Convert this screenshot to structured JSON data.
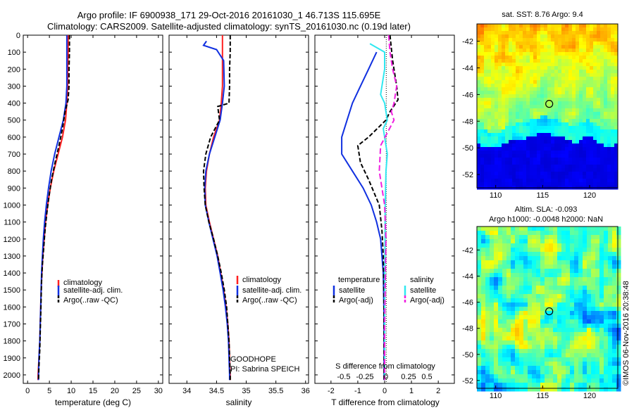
{
  "header": {
    "title_line1": "Argo profile: IF 6900938_171 29-Oct-2016 20161030_1 46.713S 115.695E",
    "title_line2": "Climatology: CARS2009. Satellite-adjusted climatology: synTS_20161030.nc (0.19d later)"
  },
  "watermark": "©IMOS 06-Nov-2016 20:38:48",
  "colors": {
    "climatology": "#ff2020",
    "satellite": "#1030e0",
    "argo": "#000000",
    "satellite_salinity": "#30e8f0",
    "argo_salinity": "#f020e0",
    "map_deep": "#001a8c"
  },
  "chart_data": [
    {
      "type": "line",
      "id": "temperature",
      "xlabel": "temperature (deg C)",
      "ylim": [
        2050,
        0
      ],
      "xlim": [
        -1,
        31
      ],
      "yticks": [
        0,
        100,
        200,
        300,
        400,
        500,
        600,
        700,
        800,
        900,
        1000,
        1100,
        1200,
        1300,
        1400,
        1500,
        1600,
        1700,
        1800,
        1900,
        2000
      ],
      "xticks": [
        0,
        5,
        10,
        15,
        20,
        25,
        30
      ],
      "legend": [
        "climatology",
        "satellite-adj. clim.",
        "Argo(..raw -QC)"
      ],
      "series": [
        {
          "name": "climatology",
          "color": "#ff2020",
          "dash": "",
          "points": [
            [
              9.3,
              0
            ],
            [
              9.3,
              100
            ],
            [
              9.2,
              200
            ],
            [
              9.2,
              300
            ],
            [
              9.0,
              400
            ],
            [
              8.7,
              500
            ],
            [
              8.0,
              600
            ],
            [
              7.0,
              700
            ],
            [
              6.0,
              800
            ],
            [
              5.2,
              900
            ],
            [
              4.6,
              1000
            ],
            [
              4.1,
              1100
            ],
            [
              3.8,
              1200
            ],
            [
              3.5,
              1300
            ],
            [
              3.3,
              1400
            ],
            [
              3.1,
              1500
            ],
            [
              3.0,
              1600
            ],
            [
              2.9,
              1700
            ],
            [
              2.8,
              1800
            ],
            [
              2.6,
              1900
            ],
            [
              2.4,
              2000
            ],
            [
              2.4,
              2030
            ]
          ]
        },
        {
          "name": "satellite-adj. clim.",
          "color": "#1030e0",
          "dash": "",
          "points": [
            [
              9.0,
              0
            ],
            [
              9.0,
              100
            ],
            [
              9.0,
              200
            ],
            [
              9.0,
              300
            ],
            [
              8.8,
              400
            ],
            [
              8.2,
              500
            ],
            [
              7.2,
              600
            ],
            [
              6.2,
              700
            ],
            [
              5.4,
              800
            ],
            [
              4.8,
              900
            ],
            [
              4.3,
              1000
            ],
            [
              3.9,
              1100
            ],
            [
              3.6,
              1200
            ],
            [
              3.4,
              1300
            ],
            [
              3.2,
              1400
            ],
            [
              3.1,
              1500
            ],
            [
              3.0,
              1600
            ],
            [
              2.9,
              1700
            ],
            [
              2.8,
              1800
            ],
            [
              2.6,
              1900
            ],
            [
              2.5,
              2000
            ],
            [
              2.5,
              2030
            ]
          ]
        },
        {
          "name": "Argo(..raw -QC)",
          "color": "#000000",
          "dash": "6,3",
          "points": [
            [
              9.6,
              0
            ],
            [
              9.6,
              100
            ],
            [
              9.5,
              200
            ],
            [
              9.5,
              300
            ],
            [
              9.3,
              380
            ],
            [
              8.6,
              450
            ],
            [
              8.0,
              550
            ],
            [
              7.2,
              650
            ],
            [
              6.3,
              750
            ],
            [
              5.5,
              850
            ],
            [
              4.9,
              950
            ],
            [
              4.4,
              1050
            ],
            [
              4.0,
              1150
            ],
            [
              3.7,
              1250
            ],
            [
              3.4,
              1350
            ],
            [
              3.2,
              1450
            ],
            [
              3.1,
              1550
            ],
            [
              3.0,
              1650
            ],
            [
              2.9,
              1750
            ],
            [
              2.8,
              1850
            ],
            [
              2.6,
              1950
            ],
            [
              2.5,
              2030
            ]
          ]
        }
      ]
    },
    {
      "type": "line",
      "id": "salinity",
      "xlabel": "salinity",
      "ylim": [
        2050,
        0
      ],
      "xlim": [
        33.7,
        36.05
      ],
      "xticks": [
        34,
        34.5,
        35,
        35.5,
        36
      ],
      "legend": [
        "climatology",
        "satellite-adj. clim.",
        "Argo(..raw -QC)"
      ],
      "annotations": [
        "GOODHOPE",
        "PI: Sabrina SPEICH"
      ],
      "series": [
        {
          "name": "climatology",
          "color": "#ff2020",
          "dash": "",
          "points": [
            [
              34.6,
              0
            ],
            [
              34.6,
              100
            ],
            [
              34.6,
              200
            ],
            [
              34.6,
              300
            ],
            [
              34.58,
              400
            ],
            [
              34.55,
              500
            ],
            [
              34.45,
              600
            ],
            [
              34.38,
              700
            ],
            [
              34.33,
              800
            ],
            [
              34.31,
              900
            ],
            [
              34.32,
              1000
            ],
            [
              34.38,
              1100
            ],
            [
              34.45,
              1200
            ],
            [
              34.52,
              1300
            ],
            [
              34.57,
              1400
            ],
            [
              34.62,
              1500
            ],
            [
              34.66,
              1600
            ],
            [
              34.69,
              1700
            ],
            [
              34.71,
              1800
            ],
            [
              34.72,
              1900
            ],
            [
              34.73,
              2000
            ],
            [
              34.73,
              2030
            ]
          ]
        },
        {
          "name": "satellite-adj. clim.",
          "color": "#1030e0",
          "dash": "",
          "points": [
            [
              34.33,
              35
            ],
            [
              34.28,
              60
            ],
            [
              34.5,
              85
            ],
            [
              34.62,
              150
            ],
            [
              34.63,
              300
            ],
            [
              34.6,
              400
            ],
            [
              34.56,
              500
            ],
            [
              34.47,
              600
            ],
            [
              34.38,
              700
            ],
            [
              34.32,
              800
            ],
            [
              34.3,
              900
            ],
            [
              34.31,
              1000
            ],
            [
              34.37,
              1100
            ],
            [
              34.44,
              1200
            ],
            [
              34.51,
              1300
            ],
            [
              34.56,
              1400
            ],
            [
              34.61,
              1500
            ],
            [
              34.65,
              1600
            ],
            [
              34.68,
              1700
            ],
            [
              34.7,
              1800
            ],
            [
              34.71,
              1900
            ],
            [
              34.72,
              2000
            ],
            [
              34.72,
              2030
            ]
          ]
        },
        {
          "name": "Argo(..raw -QC)",
          "color": "#000000",
          "dash": "6,3",
          "points": [
            [
              34.73,
              0
            ],
            [
              34.73,
              100
            ],
            [
              34.72,
              200
            ],
            [
              34.72,
              300
            ],
            [
              34.71,
              400
            ],
            [
              34.52,
              420
            ],
            [
              34.55,
              500
            ],
            [
              34.4,
              600
            ],
            [
              34.32,
              700
            ],
            [
              34.28,
              800
            ],
            [
              34.29,
              900
            ],
            [
              34.31,
              1000
            ],
            [
              34.37,
              1100
            ],
            [
              34.45,
              1200
            ],
            [
              34.52,
              1300
            ],
            [
              34.58,
              1400
            ],
            [
              34.63,
              1500
            ],
            [
              34.67,
              1600
            ],
            [
              34.69,
              1700
            ],
            [
              34.71,
              1800
            ],
            [
              34.72,
              1900
            ],
            [
              34.73,
              2000
            ],
            [
              34.73,
              2030
            ]
          ]
        }
      ]
    },
    {
      "type": "line",
      "id": "difference",
      "xlabel": "T difference from climatology",
      "xlabel_top": "S difference from climatology",
      "ylim": [
        2050,
        0
      ],
      "xlim": [
        -2.6,
        2.6
      ],
      "xticks": [
        -2,
        -1,
        0,
        1,
        2
      ],
      "xticklabels": [
        "-2",
        "-1",
        "0",
        "1",
        "2"
      ],
      "xticks_s": [
        "-0.5",
        "-0.25",
        "0",
        "0.25",
        "0.5"
      ],
      "legend_headers": [
        "temperature",
        "salinity"
      ],
      "legend": [
        "satellite",
        "Argo(-adj)",
        "satellite",
        "Argo(-adj)"
      ],
      "series": [
        {
          "name": "satellite",
          "color": "#1030e0",
          "dash": "",
          "points": [
            [
              -0.3,
              100
            ],
            [
              -0.6,
              200
            ],
            [
              -0.9,
              300
            ],
            [
              -1.2,
              400
            ],
            [
              -1.4,
              500
            ],
            [
              -1.6,
              600
            ],
            [
              -1.6,
              700
            ],
            [
              -1.2,
              800
            ],
            [
              -0.8,
              900
            ],
            [
              -0.5,
              1000
            ],
            [
              -0.3,
              1100
            ],
            [
              -0.15,
              1200
            ],
            [
              -0.1,
              1300
            ],
            [
              -0.05,
              1400
            ],
            [
              -0.03,
              1600
            ],
            [
              -0.02,
              1800
            ],
            [
              -0.02,
              2030
            ]
          ]
        },
        {
          "name": "Argo(-adj)",
          "color": "#000000",
          "dash": "6,3",
          "points": [
            [
              0.2,
              0
            ],
            [
              0.3,
              150
            ],
            [
              0.45,
              300
            ],
            [
              0.5,
              380
            ],
            [
              0.2,
              450
            ],
            [
              0.05,
              500
            ],
            [
              -0.6,
              600
            ],
            [
              -1.0,
              650
            ],
            [
              -0.9,
              750
            ],
            [
              -0.6,
              850
            ],
            [
              -0.2,
              1000
            ],
            [
              -0.1,
              1150
            ],
            [
              -0.05,
              1300
            ],
            [
              -0.03,
              1500
            ],
            [
              -0.02,
              1800
            ],
            [
              -0.02,
              2030
            ]
          ]
        },
        {
          "name": "satellite",
          "color": "#30e8f0",
          "dash": "",
          "points": [
            [
              -0.55,
              50
            ],
            [
              0.0,
              100
            ],
            [
              0.0,
              200
            ],
            [
              -0.1,
              300
            ],
            [
              -0.15,
              350
            ],
            [
              0.0,
              400
            ],
            [
              0.1,
              500
            ],
            [
              -0.05,
              550
            ],
            [
              0.0,
              600
            ],
            [
              0.1,
              700
            ],
            [
              0.05,
              800
            ],
            [
              0.02,
              1000
            ],
            [
              0.01,
              1300
            ],
            [
              0.0,
              1600
            ],
            [
              0.0,
              2030
            ]
          ]
        },
        {
          "name": "Argo(-adj)",
          "color": "#f020e0",
          "dash": "8,4",
          "points": [
            [
              0.15,
              0
            ],
            [
              0.2,
              100
            ],
            [
              0.3,
              200
            ],
            [
              0.45,
              300
            ],
            [
              0.35,
              400
            ],
            [
              0.25,
              450
            ],
            [
              0.35,
              500
            ],
            [
              -0.15,
              650
            ],
            [
              -0.2,
              800
            ],
            [
              0.0,
              1000
            ],
            [
              0.05,
              1200
            ],
            [
              0.03,
              1400
            ],
            [
              0.0,
              1700
            ],
            [
              0.0,
              2030
            ]
          ]
        }
      ]
    },
    {
      "type": "heatmap",
      "id": "sst_map",
      "title": "sat. SST: 8.76 Argo: 9.4",
      "xlim": [
        108,
        123
      ],
      "ylim": [
        -53,
        -40.7
      ],
      "xticks": [
        110,
        115,
        120
      ],
      "yticks": [
        -42,
        -44,
        -46,
        -48,
        -50,
        -52
      ],
      "marker": {
        "lon": 115.7,
        "lat": -46.7
      }
    },
    {
      "type": "heatmap",
      "id": "sla_map",
      "title_line1": "Altim. SLA: -0.093",
      "title_line2": "Argo h1000: -0.0048 h2000: NaN",
      "xlim": [
        108,
        123
      ],
      "ylim": [
        -52.6,
        -40.2
      ],
      "xticks": [
        110,
        115,
        120
      ],
      "yticks": [
        -42,
        -44,
        -46,
        -48,
        -50,
        -52
      ],
      "marker": {
        "lon": 115.7,
        "lat": -46.7
      }
    }
  ]
}
